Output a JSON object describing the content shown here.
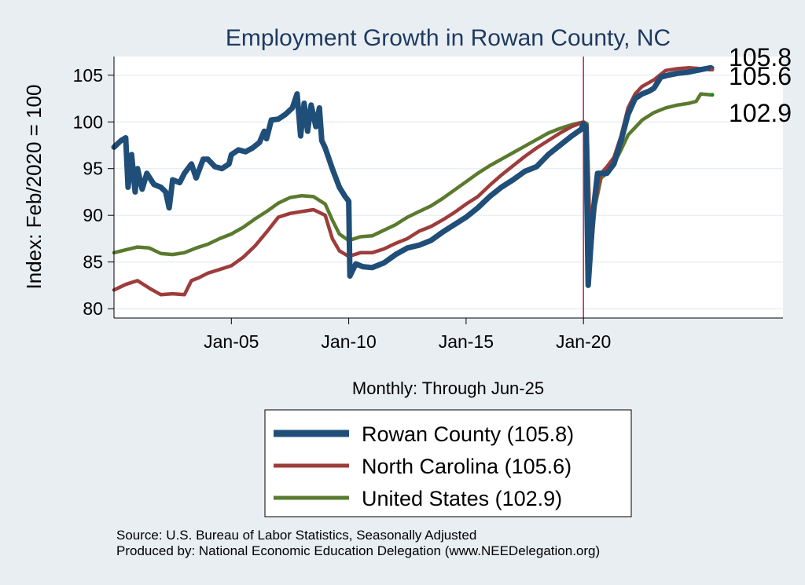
{
  "chart_data": {
    "type": "line",
    "title": "Employment Growth in Rowan  County, NC",
    "xlabel": "Monthly: Through Jun-25",
    "ylabel": "Index: Feb/2020 = 100",
    "ylim": [
      79,
      107
    ],
    "xlim": [
      2000.0,
      2028.5
    ],
    "grid": true,
    "x_tick_labels": [
      "Jan-05",
      "Jan-10",
      "Jan-15",
      "Jan-20"
    ],
    "x_tick_values": [
      2005.0,
      2010.0,
      2015.0,
      2020.0
    ],
    "y_tick_labels": [
      "80",
      "85",
      "90",
      "95",
      "100",
      "105"
    ],
    "y_tick_values": [
      80,
      85,
      90,
      95,
      100,
      105
    ],
    "reference_line_x": 2020.0,
    "end_labels": [
      "105.8",
      "105.6",
      "102.9"
    ],
    "legend": [
      "Rowan  County (105.8)",
      "North Carolina (105.6)",
      "United States (102.9)"
    ],
    "series": [
      {
        "name": "Rowan  County",
        "color": "#1f4e79",
        "points": [
          [
            2000.0,
            97.3
          ],
          [
            2000.3,
            98.0
          ],
          [
            2000.5,
            98.3
          ],
          [
            2000.6,
            93.0
          ],
          [
            2000.75,
            96.5
          ],
          [
            2000.9,
            92.5
          ],
          [
            2001.0,
            95.0
          ],
          [
            2001.2,
            92.8
          ],
          [
            2001.4,
            94.5
          ],
          [
            2001.7,
            93.3
          ],
          [
            2002.0,
            93.0
          ],
          [
            2002.2,
            92.5
          ],
          [
            2002.35,
            90.8
          ],
          [
            2002.5,
            93.8
          ],
          [
            2002.8,
            93.5
          ],
          [
            2003.0,
            94.5
          ],
          [
            2003.3,
            95.5
          ],
          [
            2003.5,
            94.0
          ],
          [
            2003.8,
            96.0
          ],
          [
            2004.0,
            96.0
          ],
          [
            2004.3,
            95.2
          ],
          [
            2004.6,
            95.0
          ],
          [
            2004.9,
            95.5
          ],
          [
            2005.0,
            96.5
          ],
          [
            2005.3,
            97.0
          ],
          [
            2005.6,
            96.8
          ],
          [
            2005.9,
            97.2
          ],
          [
            2006.2,
            97.8
          ],
          [
            2006.4,
            99.0
          ],
          [
            2006.5,
            98.2
          ],
          [
            2006.7,
            100.2
          ],
          [
            2007.0,
            100.3
          ],
          [
            2007.3,
            100.8
          ],
          [
            2007.6,
            101.5
          ],
          [
            2007.8,
            103.0
          ],
          [
            2007.95,
            98.5
          ],
          [
            2008.1,
            102.0
          ],
          [
            2008.25,
            99.0
          ],
          [
            2008.4,
            101.8
          ],
          [
            2008.6,
            99.5
          ],
          [
            2008.75,
            101.5
          ],
          [
            2008.85,
            98.0
          ],
          [
            2009.0,
            97.2
          ],
          [
            2009.3,
            95.0
          ],
          [
            2009.6,
            93.0
          ],
          [
            2009.85,
            92.0
          ],
          [
            2010.0,
            91.5
          ],
          [
            2010.05,
            83.5
          ],
          [
            2010.3,
            84.8
          ],
          [
            2010.6,
            84.5
          ],
          [
            2011.0,
            84.4
          ],
          [
            2011.5,
            84.9
          ],
          [
            2012.0,
            85.8
          ],
          [
            2012.5,
            86.5
          ],
          [
            2013.0,
            86.8
          ],
          [
            2013.5,
            87.3
          ],
          [
            2014.0,
            88.2
          ],
          [
            2014.5,
            89.0
          ],
          [
            2015.0,
            89.8
          ],
          [
            2015.5,
            90.8
          ],
          [
            2016.0,
            92.0
          ],
          [
            2016.5,
            93.0
          ],
          [
            2017.0,
            93.8
          ],
          [
            2017.5,
            94.7
          ],
          [
            2018.0,
            95.2
          ],
          [
            2018.5,
            96.5
          ],
          [
            2019.0,
            97.5
          ],
          [
            2019.5,
            98.5
          ],
          [
            2019.9,
            99.2
          ],
          [
            2020.0,
            99.8
          ],
          [
            2020.1,
            99.5
          ],
          [
            2020.2,
            82.5
          ],
          [
            2020.4,
            90.0
          ],
          [
            2020.6,
            94.5
          ],
          [
            2021.0,
            94.5
          ],
          [
            2021.3,
            95.5
          ],
          [
            2021.6,
            98.0
          ],
          [
            2021.9,
            100.8
          ],
          [
            2022.2,
            102.5
          ],
          [
            2022.5,
            103.0
          ],
          [
            2022.8,
            103.3
          ],
          [
            2023.0,
            103.6
          ],
          [
            2023.3,
            104.8
          ],
          [
            2023.6,
            105.0
          ],
          [
            2024.0,
            105.2
          ],
          [
            2024.4,
            105.3
          ],
          [
            2024.8,
            105.5
          ],
          [
            2025.2,
            105.7
          ],
          [
            2025.42,
            105.8
          ]
        ]
      },
      {
        "name": "North Carolina",
        "color": "#9e3c3c",
        "points": [
          [
            2000.0,
            82.0
          ],
          [
            2000.5,
            82.6
          ],
          [
            2001.0,
            83.0
          ],
          [
            2001.5,
            82.2
          ],
          [
            2002.0,
            81.5
          ],
          [
            2002.5,
            81.6
          ],
          [
            2003.0,
            81.5
          ],
          [
            2003.3,
            83.0
          ],
          [
            2003.6,
            83.3
          ],
          [
            2004.0,
            83.8
          ],
          [
            2004.5,
            84.2
          ],
          [
            2005.0,
            84.6
          ],
          [
            2005.5,
            85.5
          ],
          [
            2006.0,
            86.7
          ],
          [
            2006.5,
            88.2
          ],
          [
            2007.0,
            89.8
          ],
          [
            2007.5,
            90.2
          ],
          [
            2008.0,
            90.4
          ],
          [
            2008.5,
            90.6
          ],
          [
            2009.0,
            90.0
          ],
          [
            2009.3,
            87.5
          ],
          [
            2009.6,
            86.2
          ],
          [
            2010.0,
            85.6
          ],
          [
            2010.5,
            86.0
          ],
          [
            2011.0,
            86.0
          ],
          [
            2011.5,
            86.4
          ],
          [
            2012.0,
            87.0
          ],
          [
            2012.5,
            87.5
          ],
          [
            2013.0,
            88.3
          ],
          [
            2013.5,
            88.8
          ],
          [
            2014.0,
            89.5
          ],
          [
            2014.5,
            90.3
          ],
          [
            2015.0,
            91.2
          ],
          [
            2015.5,
            92.0
          ],
          [
            2016.0,
            93.2
          ],
          [
            2016.5,
            94.3
          ],
          [
            2017.0,
            95.3
          ],
          [
            2017.5,
            96.3
          ],
          [
            2018.0,
            97.2
          ],
          [
            2018.5,
            98.0
          ],
          [
            2019.0,
            98.8
          ],
          [
            2019.5,
            99.5
          ],
          [
            2020.0,
            100.0
          ],
          [
            2020.15,
            99.5
          ],
          [
            2020.3,
            85.0
          ],
          [
            2020.5,
            91.5
          ],
          [
            2020.75,
            94.5
          ],
          [
            2021.0,
            95.2
          ],
          [
            2021.3,
            96.2
          ],
          [
            2021.6,
            98.5
          ],
          [
            2021.9,
            101.5
          ],
          [
            2022.2,
            103.0
          ],
          [
            2022.5,
            103.8
          ],
          [
            2023.0,
            104.5
          ],
          [
            2023.5,
            105.5
          ],
          [
            2024.0,
            105.7
          ],
          [
            2024.5,
            105.8
          ],
          [
            2025.0,
            105.7
          ],
          [
            2025.42,
            105.6
          ]
        ]
      },
      {
        "name": "United States",
        "color": "#5a7a2e",
        "points": [
          [
            2000.0,
            86.0
          ],
          [
            2000.5,
            86.3
          ],
          [
            2001.0,
            86.6
          ],
          [
            2001.5,
            86.5
          ],
          [
            2002.0,
            85.9
          ],
          [
            2002.5,
            85.8
          ],
          [
            2003.0,
            86.0
          ],
          [
            2003.5,
            86.5
          ],
          [
            2004.0,
            86.9
          ],
          [
            2004.5,
            87.5
          ],
          [
            2005.0,
            88.0
          ],
          [
            2005.5,
            88.7
          ],
          [
            2006.0,
            89.6
          ],
          [
            2006.5,
            90.4
          ],
          [
            2007.0,
            91.3
          ],
          [
            2007.5,
            91.9
          ],
          [
            2008.0,
            92.1
          ],
          [
            2008.5,
            92.0
          ],
          [
            2009.0,
            91.2
          ],
          [
            2009.3,
            89.5
          ],
          [
            2009.6,
            88.0
          ],
          [
            2010.0,
            87.3
          ],
          [
            2010.5,
            87.7
          ],
          [
            2011.0,
            87.8
          ],
          [
            2011.5,
            88.4
          ],
          [
            2012.0,
            89.0
          ],
          [
            2012.5,
            89.8
          ],
          [
            2013.0,
            90.4
          ],
          [
            2013.5,
            91.0
          ],
          [
            2014.0,
            91.8
          ],
          [
            2014.5,
            92.7
          ],
          [
            2015.0,
            93.6
          ],
          [
            2015.5,
            94.5
          ],
          [
            2016.0,
            95.3
          ],
          [
            2016.5,
            96.0
          ],
          [
            2017.0,
            96.7
          ],
          [
            2017.5,
            97.4
          ],
          [
            2018.0,
            98.1
          ],
          [
            2018.5,
            98.8
          ],
          [
            2019.0,
            99.3
          ],
          [
            2019.5,
            99.7
          ],
          [
            2020.0,
            100.0
          ],
          [
            2020.15,
            99.8
          ],
          [
            2020.3,
            86.0
          ],
          [
            2020.5,
            91.0
          ],
          [
            2020.75,
            94.0
          ],
          [
            2021.0,
            94.5
          ],
          [
            2021.3,
            95.5
          ],
          [
            2021.6,
            97.0
          ],
          [
            2021.9,
            98.6
          ],
          [
            2022.2,
            99.4
          ],
          [
            2022.5,
            100.2
          ],
          [
            2023.0,
            101.0
          ],
          [
            2023.5,
            101.5
          ],
          [
            2024.0,
            101.8
          ],
          [
            2024.5,
            102.0
          ],
          [
            2024.8,
            102.2
          ],
          [
            2025.0,
            103.0
          ],
          [
            2025.42,
            102.9
          ]
        ]
      }
    ]
  },
  "footer": {
    "source": "Source: U.S. Bureau of Labor Statistics, Seasonally Adjusted",
    "produced_by": "Produced by: National Economic Education Delegation (www.NEEDelegation.org)"
  }
}
